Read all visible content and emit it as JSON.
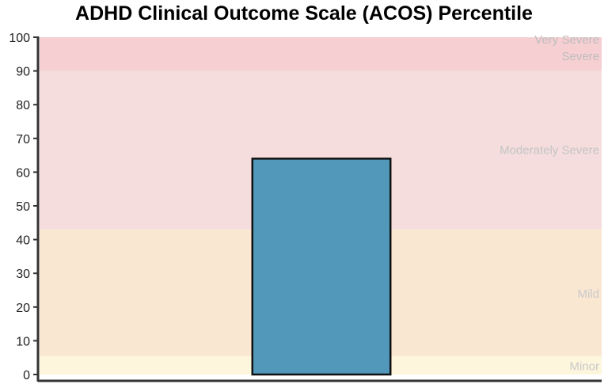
{
  "chart_data": {
    "type": "bar",
    "title": "ADHD Clinical Outcome Scale (ACOS) Percentile",
    "xlabel": "",
    "ylabel": "",
    "ylim": [
      0,
      100
    ],
    "yticks": [
      0,
      10,
      20,
      30,
      40,
      50,
      60,
      70,
      80,
      90,
      100
    ],
    "grid": false,
    "categories": [
      ""
    ],
    "values": [
      64
    ],
    "bar_color": "#5198ba",
    "bar_edge_color": "#111111",
    "bands": [
      {
        "label": "Minor",
        "from": 0,
        "to": 5.5,
        "color": "#fdf6dc",
        "text_color": "#c9c9c9"
      },
      {
        "label": "Mild",
        "from": 5.5,
        "to": 43,
        "color": "#fae7d2",
        "text_color": "#c9c9c9"
      },
      {
        "label": "Moderately Severe",
        "from": 43,
        "to": 90,
        "color": "#f5dddd",
        "text_color": "#c4c4c4"
      },
      {
        "label": "Severe",
        "from": 90,
        "to": 100,
        "color": "#f6cfd2",
        "text_color": "#bdbdbd"
      },
      {
        "label": "Very Severe",
        "from": 90,
        "to": 100,
        "color": "#f6cfd2",
        "text_color": "#bdbdbd"
      }
    ]
  }
}
